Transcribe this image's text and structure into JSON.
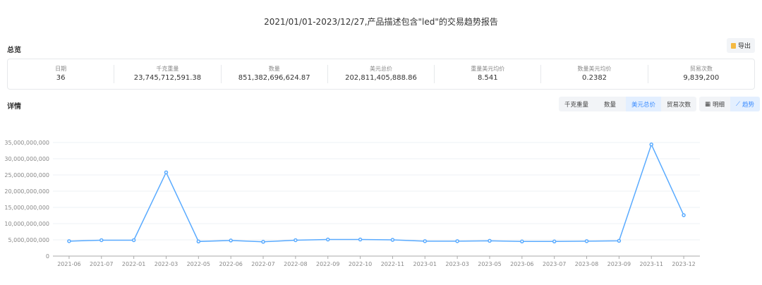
{
  "title": "2021/01/01-2023/12/27,产品描述包含\"led\"的交易趋势报告",
  "overview": {
    "heading": "总览",
    "export_label": "导出",
    "export_icon": "file-export-icon",
    "stats": [
      {
        "label": "日期",
        "value": "36"
      },
      {
        "label": "千克重量",
        "value": "23,745,712,591.38"
      },
      {
        "label": "数量",
        "value": "851,382,696,624.87"
      },
      {
        "label": "美元总价",
        "value": "202,811,405,888.86"
      },
      {
        "label": "重量美元均价",
        "value": "8.541"
      },
      {
        "label": "数量美元均价",
        "value": "0.2382"
      },
      {
        "label": "贸易次数",
        "value": "9,839,200"
      }
    ]
  },
  "details": {
    "heading": "详情",
    "metric_tabs": [
      "千克重量",
      "数量",
      "美元总价",
      "贸易次数"
    ],
    "active_metric": "美元总价",
    "view_tabs": [
      {
        "label": "明细",
        "icon": "table-icon"
      },
      {
        "label": "趋势",
        "icon": "line-chart-icon"
      }
    ],
    "active_view": "趋势"
  },
  "chart_data": {
    "type": "line",
    "categories": [
      "2021-06",
      "2021-07",
      "2022-01",
      "2022-03",
      "2022-05",
      "2022-06",
      "2022-07",
      "2022-08",
      "2022-09",
      "2022-10",
      "2022-11",
      "2023-01",
      "2023-03",
      "2023-05",
      "2023-06",
      "2023-07",
      "2023-08",
      "2023-09",
      "2023-11",
      "2023-12"
    ],
    "values": [
      4600000000,
      4900000000,
      4900000000,
      25800000000,
      4500000000,
      4800000000,
      4400000000,
      4900000000,
      5100000000,
      5100000000,
      5000000000,
      4600000000,
      4600000000,
      4700000000,
      4500000000,
      4500000000,
      4600000000,
      4700000000,
      34400000000,
      12600000000
    ],
    "yticks": [
      "0",
      "5,000,000,000",
      "10,000,000,000",
      "15,000,000,000",
      "20,000,000,000",
      "25,000,000,000",
      "30,000,000,000",
      "35,000,000,000"
    ],
    "ylim": [
      0,
      35000000000
    ],
    "grid": true,
    "color": "#5aabff"
  }
}
